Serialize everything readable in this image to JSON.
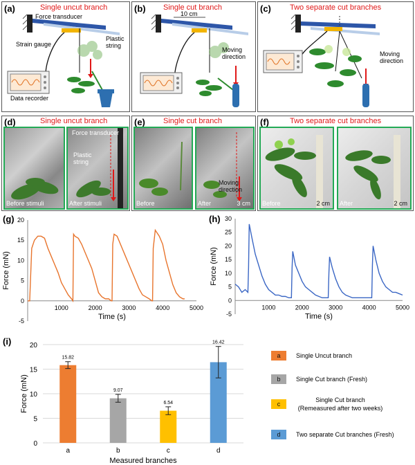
{
  "panels": {
    "a": {
      "label": "(a)",
      "title": "Single uncut branch",
      "force_transducer": "Force transducer",
      "strain_gauge": "Strain gauge",
      "plastic_string": "Plastic\nstring",
      "data_recorder": "Data recorder"
    },
    "b": {
      "label": "(b)",
      "title": "Single cut branch",
      "dim": "10 cm",
      "moving": "Moving\ndirection"
    },
    "c": {
      "label": "(c)",
      "title": "Two separate cut branches",
      "moving": "Moving\ndirection"
    },
    "d": {
      "label": "(d)",
      "title": "Single uncut branch",
      "force_transducer": "Force transducer",
      "plastic_string": "Plastic\nstring",
      "before": "Before stimuli",
      "after": "After stimuli"
    },
    "e": {
      "label": "(e)",
      "title": "Single cut branch",
      "before": "Before",
      "after": "After",
      "moving": "Moving\ndirection",
      "scale": "3 cm"
    },
    "f": {
      "label": "(f)",
      "title": "Two separate cut branches",
      "before": "Before",
      "after": "After",
      "scale1": "2 cm",
      "scale2": "2 cm"
    },
    "g": {
      "label": "(g)"
    },
    "h": {
      "label": "(h)"
    },
    "i": {
      "label": "(i)"
    }
  },
  "colors": {
    "title_red": "#e01818",
    "orange": "#e8742c",
    "blue": "#3a66c4",
    "gray": "#a6a6a6",
    "yellow": "#ffc000",
    "bar_blue": "#5b9bd5",
    "bar_orange": "#ed7d31"
  },
  "chart_data": [
    {
      "type": "line",
      "panel": "g",
      "xlabel": "Time (s)",
      "ylabel": "Force (mN)",
      "xlim": [
        0,
        5000
      ],
      "ylim": [
        -5,
        20
      ],
      "xticks": [
        1000,
        2000,
        3000,
        4000,
        5000
      ],
      "yticks": [
        -5,
        0,
        5,
        10,
        15,
        20
      ],
      "color": "#e8742c",
      "x": [
        0,
        60,
        120,
        200,
        300,
        400,
        500,
        600,
        700,
        800,
        900,
        1000,
        1100,
        1200,
        1300,
        1340,
        1360,
        1400,
        1500,
        1600,
        1700,
        1800,
        1900,
        2000,
        2100,
        2200,
        2300,
        2400,
        2480,
        2500,
        2520,
        2560,
        2650,
        2700,
        2800,
        2900,
        3000,
        3100,
        3200,
        3300,
        3400,
        3500,
        3600,
        3680,
        3700,
        3720,
        3780,
        3900,
        4000,
        4100,
        4200,
        4300,
        4400,
        4500,
        4600,
        4650
      ],
      "y": [
        0,
        0,
        13,
        15,
        16,
        16,
        15.5,
        13,
        11,
        9,
        7,
        4.5,
        3,
        1.5,
        0.5,
        0,
        16.5,
        16,
        15.5,
        14,
        12,
        10,
        8,
        5,
        2,
        1,
        0.5,
        0.5,
        0,
        0,
        14,
        16.5,
        16,
        15,
        13,
        11,
        9,
        7,
        5,
        3,
        1.5,
        1,
        0.5,
        0,
        0,
        13,
        17.5,
        16,
        14,
        10,
        7,
        4,
        2,
        1,
        0.5,
        0.5
      ]
    },
    {
      "type": "line",
      "panel": "h",
      "xlabel": "Time (s)",
      "ylabel": "Force (mN)",
      "xlim": [
        0,
        5000
      ],
      "ylim": [
        -5,
        30
      ],
      "xticks": [
        1000,
        2000,
        3000,
        4000,
        5000
      ],
      "yticks": [
        -5,
        0,
        5,
        10,
        15,
        20,
        25,
        30
      ],
      "color": "#3a66c4",
      "x": [
        0,
        100,
        200,
        300,
        380,
        400,
        420,
        500,
        600,
        700,
        800,
        900,
        1000,
        1100,
        1200,
        1300,
        1400,
        1500,
        1600,
        1680,
        1700,
        1720,
        1800,
        1900,
        2000,
        2100,
        2200,
        2300,
        2400,
        2500,
        2600,
        2700,
        2780,
        2800,
        2820,
        2900,
        3000,
        3100,
        3200,
        3300,
        3400,
        3500,
        3600,
        3700,
        3800,
        3900,
        4000,
        4080,
        4100,
        4120,
        4200,
        4300,
        4400,
        4500,
        4600,
        4700,
        4800,
        4900,
        5000
      ],
      "y": [
        6,
        5,
        3,
        4,
        3,
        12,
        28,
        23,
        17,
        13,
        9,
        6,
        4,
        3,
        2,
        2,
        1.5,
        1.5,
        1,
        1,
        12,
        18,
        13,
        10,
        7,
        5,
        4,
        3,
        2,
        1.5,
        1,
        1,
        1,
        10,
        16,
        12,
        8,
        5,
        3,
        2,
        1.5,
        1,
        1,
        1,
        1,
        1,
        1,
        1,
        13,
        20,
        15,
        10,
        7,
        5,
        4,
        3,
        3,
        2.5,
        2
      ]
    },
    {
      "type": "bar",
      "panel": "i",
      "xlabel": "Measured branches",
      "ylabel": "Force (mN)",
      "ylim": [
        0,
        20
      ],
      "yticks": [
        0,
        5,
        10,
        15,
        20
      ],
      "categories": [
        "a",
        "b",
        "c",
        "d"
      ],
      "values": [
        15.82,
        9.07,
        6.54,
        16.42
      ],
      "value_labels": [
        "15.82",
        "9.07",
        "6.54",
        "16.42"
      ],
      "errors": [
        0.7,
        0.8,
        0.8,
        3.2
      ],
      "colors": [
        "#ed7d31",
        "#a6a6a6",
        "#ffc000",
        "#5b9bd5"
      ],
      "grid": true,
      "legend_position": "right",
      "legend": [
        {
          "key": "a",
          "text": "Single Uncut branch"
        },
        {
          "key": "b",
          "text": "Single Cut branch (Fresh)"
        },
        {
          "key": "c",
          "text": "Single Cut branch\n(Remeasured after two weeks)"
        },
        {
          "key": "d",
          "text": "Two separate Cut branches (Fresh)"
        }
      ]
    }
  ]
}
